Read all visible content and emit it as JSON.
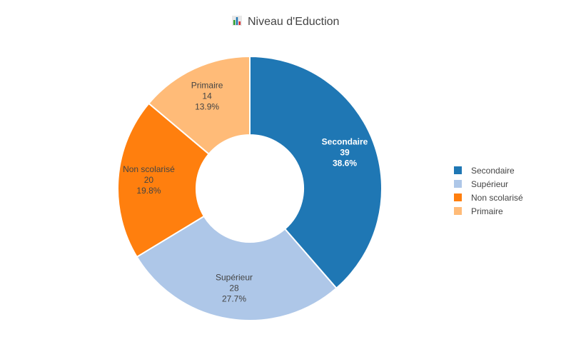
{
  "chart_data": {
    "type": "pie",
    "title": "Niveau d'Eduction",
    "title_icon": "bar-chart-icon",
    "donut": true,
    "legend_position": "right",
    "series": [
      {
        "name": "Secondaire",
        "value": 39,
        "percent": "38.6%",
        "color": "#1f77b4"
      },
      {
        "name": "Supérieur",
        "value": 28,
        "percent": "27.7%",
        "color": "#aec7e8"
      },
      {
        "name": "Non scolarisé",
        "value": 20,
        "percent": "19.8%",
        "color": "#ff7f0e"
      },
      {
        "name": "Primaire",
        "value": 14,
        "percent": "13.9%",
        "color": "#ffbb78"
      }
    ]
  }
}
